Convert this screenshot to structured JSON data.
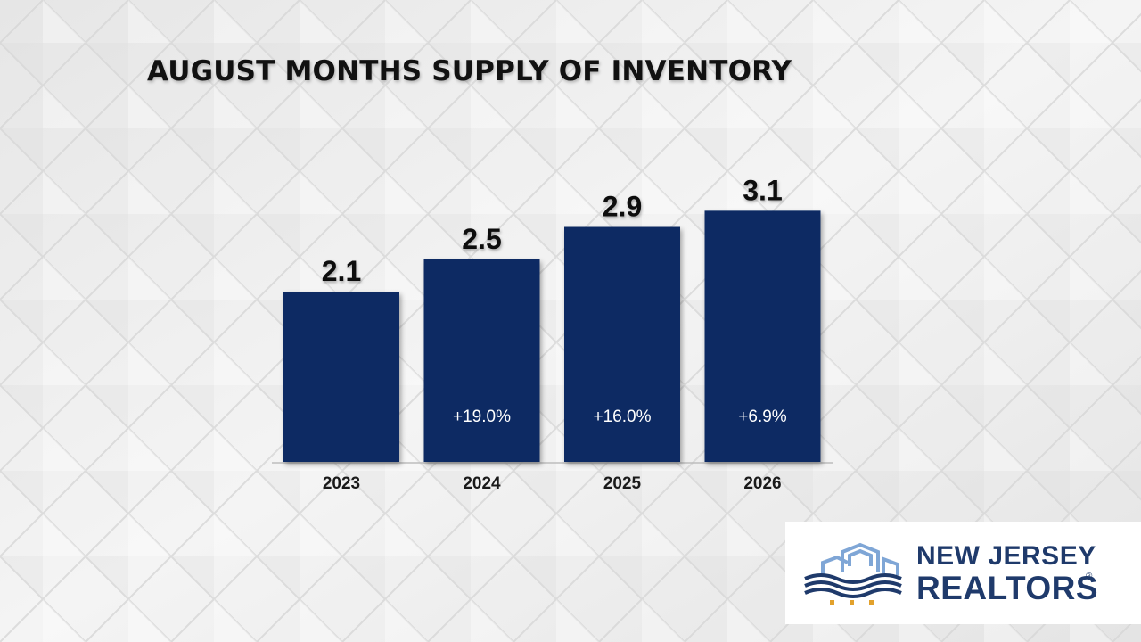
{
  "colors": {
    "bar": "#0e2a63",
    "background": "#eeeeee",
    "logo_navy": "#1f3a6b",
    "logo_light_blue": "#7fa6d6",
    "logo_gold": "#e2a12c"
  },
  "chart_data": {
    "type": "bar",
    "title": "AUGUST MONTHS SUPPLY OF INVENTORY",
    "categories": [
      "2023",
      "2024",
      "2025",
      "2026"
    ],
    "values": [
      2.1,
      2.5,
      2.9,
      3.1
    ],
    "value_labels": [
      "2.1",
      "2.5",
      "2.9",
      "3.1"
    ],
    "change_labels": [
      "",
      "+19.0%",
      "+16.0%",
      "+6.9%"
    ],
    "ylim": [
      0,
      3.5
    ],
    "grid": false,
    "xlabel": "",
    "ylabel": ""
  },
  "logo": {
    "line1": "NEW JERSEY",
    "line2": "REALTORS",
    "registered": "®",
    "icon": "skyline-waves-icon"
  }
}
